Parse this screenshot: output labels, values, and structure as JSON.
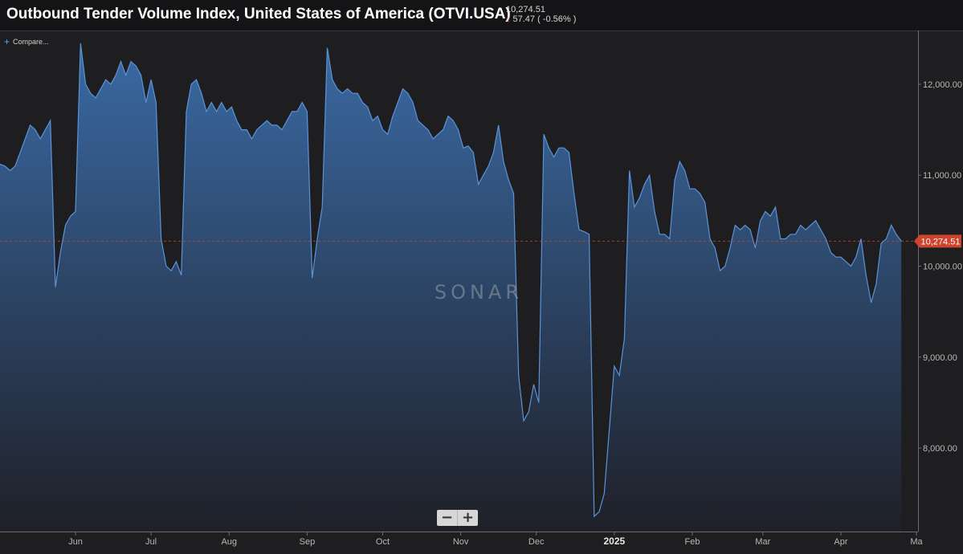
{
  "header": {
    "title": "Outbound Tender Volume Index, United States of America (OTVI.USA)",
    "last_value": "10,274.51",
    "change": "57.47 ( -0.56% )",
    "change_direction": "down",
    "down_color": "#e0433a"
  },
  "compare_label": "Compare...",
  "watermark": "SONAR",
  "zoom": {
    "out_label": "−",
    "in_label": "+"
  },
  "colors": {
    "line": "#5b93d9",
    "fill_top": "#3a6aa4",
    "fill_bottom": "#1f2028",
    "price_tag": "#d0442e"
  },
  "chart_data": {
    "type": "area",
    "title": "Outbound Tender Volume Index, United States of America (OTVI.USA)",
    "ylim": [
      7100,
      12600
    ],
    "y_ticks": [
      8000,
      9000,
      10000,
      11000,
      12000
    ],
    "y_tick_labels": [
      "8,000.00",
      "9,000.00",
      "10,000.00",
      "11,000.00",
      "12,000.00"
    ],
    "x_start": "2024-05-02",
    "x_end": "2025-05-01",
    "x_ticks": [
      {
        "date": "2024-06-01",
        "label": "Jun"
      },
      {
        "date": "2024-07-01",
        "label": "Jul"
      },
      {
        "date": "2024-08-01",
        "label": "Aug"
      },
      {
        "date": "2024-09-01",
        "label": "Sep"
      },
      {
        "date": "2024-10-01",
        "label": "Oct"
      },
      {
        "date": "2024-11-01",
        "label": "Nov"
      },
      {
        "date": "2024-12-01",
        "label": "Dec"
      },
      {
        "date": "2025-01-01",
        "label": "2025",
        "major": true
      },
      {
        "date": "2025-02-01",
        "label": "Feb"
      },
      {
        "date": "2025-03-01",
        "label": "Mar"
      },
      {
        "date": "2025-04-01",
        "label": "Apr"
      },
      {
        "date": "2025-05-01",
        "label": "Ma"
      }
    ],
    "current_value": 10274.51,
    "current_label": "10,274.51",
    "grid": false,
    "series": [
      {
        "points": [
          [
            "2024-05-02",
            11120
          ],
          [
            "2024-05-04",
            11100
          ],
          [
            "2024-05-06",
            11050
          ],
          [
            "2024-05-08",
            11100
          ],
          [
            "2024-05-10",
            11250
          ],
          [
            "2024-05-12",
            11400
          ],
          [
            "2024-05-14",
            11550
          ],
          [
            "2024-05-16",
            11500
          ],
          [
            "2024-05-18",
            11400
          ],
          [
            "2024-05-20",
            11500
          ],
          [
            "2024-05-22",
            11600
          ],
          [
            "2024-05-24",
            9770
          ],
          [
            "2024-05-26",
            10150
          ],
          [
            "2024-05-28",
            10450
          ],
          [
            "2024-05-30",
            10550
          ],
          [
            "2024-06-01",
            10600
          ],
          [
            "2024-06-03",
            12450
          ],
          [
            "2024-06-05",
            12000
          ],
          [
            "2024-06-07",
            11900
          ],
          [
            "2024-06-09",
            11850
          ],
          [
            "2024-06-11",
            11950
          ],
          [
            "2024-06-13",
            12050
          ],
          [
            "2024-06-15",
            12000
          ],
          [
            "2024-06-17",
            12100
          ],
          [
            "2024-06-19",
            12250
          ],
          [
            "2024-06-21",
            12100
          ],
          [
            "2024-06-23",
            12250
          ],
          [
            "2024-06-25",
            12200
          ],
          [
            "2024-06-27",
            12100
          ],
          [
            "2024-06-29",
            11800
          ],
          [
            "2024-07-01",
            12050
          ],
          [
            "2024-07-03",
            11800
          ],
          [
            "2024-07-05",
            10300
          ],
          [
            "2024-07-07",
            10000
          ],
          [
            "2024-07-09",
            9950
          ],
          [
            "2024-07-11",
            10050
          ],
          [
            "2024-07-13",
            9900
          ],
          [
            "2024-07-15",
            11700
          ],
          [
            "2024-07-17",
            12000
          ],
          [
            "2024-07-19",
            12050
          ],
          [
            "2024-07-21",
            11900
          ],
          [
            "2024-07-23",
            11700
          ],
          [
            "2024-07-25",
            11800
          ],
          [
            "2024-07-27",
            11700
          ],
          [
            "2024-07-29",
            11800
          ],
          [
            "2024-07-31",
            11700
          ],
          [
            "2024-08-02",
            11750
          ],
          [
            "2024-08-04",
            11600
          ],
          [
            "2024-08-06",
            11500
          ],
          [
            "2024-08-08",
            11500
          ],
          [
            "2024-08-10",
            11400
          ],
          [
            "2024-08-12",
            11500
          ],
          [
            "2024-08-14",
            11550
          ],
          [
            "2024-08-16",
            11600
          ],
          [
            "2024-08-18",
            11550
          ],
          [
            "2024-08-20",
            11550
          ],
          [
            "2024-08-22",
            11500
          ],
          [
            "2024-08-24",
            11600
          ],
          [
            "2024-08-26",
            11700
          ],
          [
            "2024-08-28",
            11700
          ],
          [
            "2024-08-30",
            11800
          ],
          [
            "2024-09-01",
            11700
          ],
          [
            "2024-09-03",
            9870
          ],
          [
            "2024-09-05",
            10300
          ],
          [
            "2024-09-07",
            10650
          ],
          [
            "2024-09-09",
            12400
          ],
          [
            "2024-09-11",
            12050
          ],
          [
            "2024-09-13",
            11950
          ],
          [
            "2024-09-15",
            11900
          ],
          [
            "2024-09-17",
            11950
          ],
          [
            "2024-09-19",
            11900
          ],
          [
            "2024-09-21",
            11900
          ],
          [
            "2024-09-23",
            11800
          ],
          [
            "2024-09-25",
            11750
          ],
          [
            "2024-09-27",
            11600
          ],
          [
            "2024-09-29",
            11650
          ],
          [
            "2024-10-01",
            11500
          ],
          [
            "2024-10-03",
            11450
          ],
          [
            "2024-10-05",
            11650
          ],
          [
            "2024-10-07",
            11800
          ],
          [
            "2024-10-09",
            11950
          ],
          [
            "2024-10-11",
            11900
          ],
          [
            "2024-10-13",
            11800
          ],
          [
            "2024-10-15",
            11600
          ],
          [
            "2024-10-17",
            11550
          ],
          [
            "2024-10-19",
            11500
          ],
          [
            "2024-10-21",
            11400
          ],
          [
            "2024-10-23",
            11450
          ],
          [
            "2024-10-25",
            11500
          ],
          [
            "2024-10-27",
            11650
          ],
          [
            "2024-10-29",
            11600
          ],
          [
            "2024-10-31",
            11500
          ],
          [
            "2024-11-02",
            11300
          ],
          [
            "2024-11-04",
            11320
          ],
          [
            "2024-11-06",
            11250
          ],
          [
            "2024-11-08",
            10900
          ],
          [
            "2024-11-10",
            11000
          ],
          [
            "2024-11-12",
            11100
          ],
          [
            "2024-11-14",
            11250
          ],
          [
            "2024-11-16",
            11550
          ],
          [
            "2024-11-18",
            11150
          ],
          [
            "2024-11-20",
            10950
          ],
          [
            "2024-11-22",
            10800
          ],
          [
            "2024-11-24",
            8800
          ],
          [
            "2024-11-26",
            8300
          ],
          [
            "2024-11-28",
            8400
          ],
          [
            "2024-11-30",
            8700
          ],
          [
            "2024-12-02",
            8500
          ],
          [
            "2024-12-04",
            11450
          ],
          [
            "2024-12-06",
            11300
          ],
          [
            "2024-12-08",
            11200
          ],
          [
            "2024-12-10",
            11300
          ],
          [
            "2024-12-12",
            11300
          ],
          [
            "2024-12-14",
            11250
          ],
          [
            "2024-12-16",
            10800
          ],
          [
            "2024-12-18",
            10400
          ],
          [
            "2024-12-20",
            10380
          ],
          [
            "2024-12-22",
            10350
          ],
          [
            "2024-12-24",
            7250
          ],
          [
            "2024-12-26",
            7300
          ],
          [
            "2024-12-28",
            7500
          ],
          [
            "2024-12-30",
            8200
          ],
          [
            "2025-01-01",
            8900
          ],
          [
            "2025-01-03",
            8800
          ],
          [
            "2025-01-05",
            9200
          ],
          [
            "2025-01-07",
            11050
          ],
          [
            "2025-01-09",
            10650
          ],
          [
            "2025-01-11",
            10750
          ],
          [
            "2025-01-13",
            10900
          ],
          [
            "2025-01-15",
            11000
          ],
          [
            "2025-01-17",
            10600
          ],
          [
            "2025-01-19",
            10350
          ],
          [
            "2025-01-21",
            10350
          ],
          [
            "2025-01-23",
            10300
          ],
          [
            "2025-01-25",
            10950
          ],
          [
            "2025-01-27",
            11150
          ],
          [
            "2025-01-29",
            11050
          ],
          [
            "2025-01-31",
            10850
          ],
          [
            "2025-02-02",
            10850
          ],
          [
            "2025-02-04",
            10800
          ],
          [
            "2025-02-06",
            10700
          ],
          [
            "2025-02-08",
            10300
          ],
          [
            "2025-02-10",
            10200
          ],
          [
            "2025-02-12",
            9950
          ],
          [
            "2025-02-14",
            10000
          ],
          [
            "2025-02-16",
            10200
          ],
          [
            "2025-02-18",
            10450
          ],
          [
            "2025-02-20",
            10400
          ],
          [
            "2025-02-22",
            10450
          ],
          [
            "2025-02-24",
            10400
          ],
          [
            "2025-02-26",
            10200
          ],
          [
            "2025-02-28",
            10500
          ],
          [
            "2025-03-02",
            10600
          ],
          [
            "2025-03-04",
            10550
          ],
          [
            "2025-03-06",
            10650
          ],
          [
            "2025-03-08",
            10300
          ],
          [
            "2025-03-10",
            10300
          ],
          [
            "2025-03-12",
            10350
          ],
          [
            "2025-03-14",
            10350
          ],
          [
            "2025-03-16",
            10450
          ],
          [
            "2025-03-18",
            10400
          ],
          [
            "2025-03-20",
            10450
          ],
          [
            "2025-03-22",
            10500
          ],
          [
            "2025-03-24",
            10400
          ],
          [
            "2025-03-26",
            10300
          ],
          [
            "2025-03-28",
            10150
          ],
          [
            "2025-03-30",
            10100
          ],
          [
            "2025-04-01",
            10100
          ],
          [
            "2025-04-03",
            10050
          ],
          [
            "2025-04-05",
            10000
          ],
          [
            "2025-04-07",
            10100
          ],
          [
            "2025-04-09",
            10300
          ],
          [
            "2025-04-11",
            9900
          ],
          [
            "2025-04-13",
            9600
          ],
          [
            "2025-04-15",
            9800
          ],
          [
            "2025-04-17",
            10250
          ],
          [
            "2025-04-19",
            10300
          ],
          [
            "2025-04-21",
            10450
          ],
          [
            "2025-04-23",
            10350
          ],
          [
            "2025-04-25",
            10274.51
          ]
        ]
      }
    ]
  }
}
